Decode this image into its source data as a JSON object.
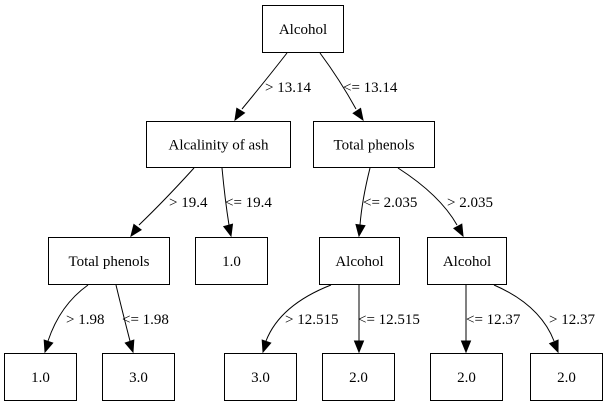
{
  "nodes": [
    {
      "id": "n0",
      "label": "Alcohol"
    },
    {
      "id": "n1",
      "label": "Alcalinity of ash"
    },
    {
      "id": "n2",
      "label": "Total phenols"
    },
    {
      "id": "n3",
      "label": "Total phenols"
    },
    {
      "id": "n4",
      "label": "1.0"
    },
    {
      "id": "n5",
      "label": "Alcohol"
    },
    {
      "id": "n6",
      "label": "Alcohol"
    },
    {
      "id": "n7",
      "label": "1.0"
    },
    {
      "id": "n8",
      "label": "3.0"
    },
    {
      "id": "n9",
      "label": "3.0"
    },
    {
      "id": "n10",
      "label": "2.0"
    },
    {
      "id": "n11",
      "label": "2.0"
    },
    {
      "id": "n12",
      "label": "2.0"
    }
  ],
  "edges": [
    {
      "id": "e0",
      "from": "n0",
      "to": "n1",
      "label": "> 13.14"
    },
    {
      "id": "e1",
      "from": "n0",
      "to": "n2",
      "label": "<= 13.14"
    },
    {
      "id": "e2",
      "from": "n1",
      "to": "n3",
      "label": "> 19.4"
    },
    {
      "id": "e3",
      "from": "n1",
      "to": "n4",
      "label": "<= 19.4"
    },
    {
      "id": "e4",
      "from": "n2",
      "to": "n5",
      "label": "<= 2.035"
    },
    {
      "id": "e5",
      "from": "n2",
      "to": "n6",
      "label": "> 2.035"
    },
    {
      "id": "e6",
      "from": "n3",
      "to": "n7",
      "label": "> 1.98"
    },
    {
      "id": "e7",
      "from": "n3",
      "to": "n8",
      "label": "<= 1.98"
    },
    {
      "id": "e8",
      "from": "n5",
      "to": "n9",
      "label": "> 12.515"
    },
    {
      "id": "e9",
      "from": "n5",
      "to": "n10",
      "label": "<= 12.515"
    },
    {
      "id": "e10",
      "from": "n6",
      "to": "n11",
      "label": "<= 12.37"
    },
    {
      "id": "e11",
      "from": "n6",
      "to": "n12",
      "label": "> 12.37"
    }
  ]
}
